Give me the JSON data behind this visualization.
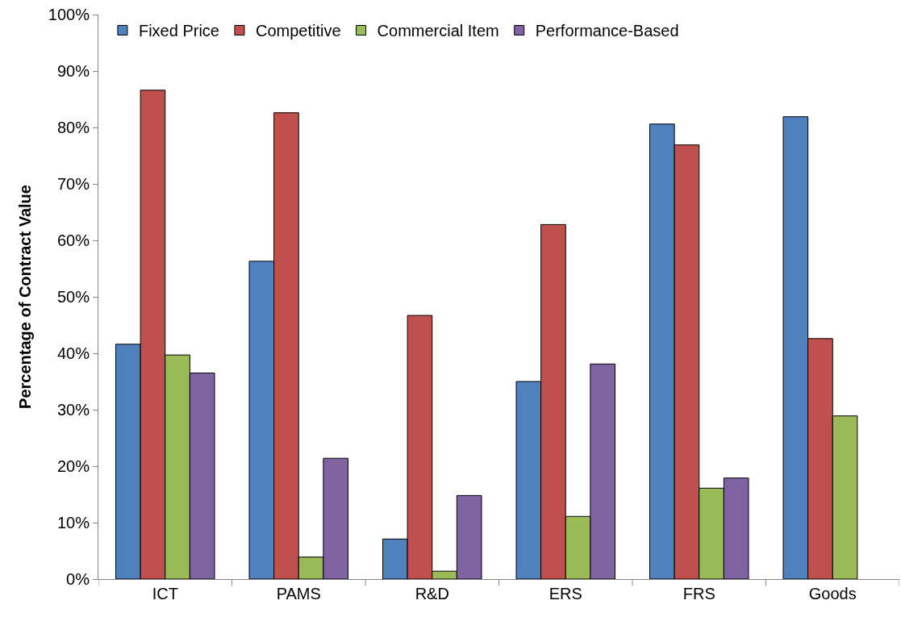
{
  "chart_data": {
    "type": "bar",
    "ylabel": "Percentage of Contract Value",
    "categories": [
      "ICT",
      "PAMS",
      "R&D",
      "ERS",
      "FRS",
      "Goods"
    ],
    "series": [
      {
        "name": "Fixed Price",
        "color": "#4f81bd",
        "values": [
          41.6,
          56.3,
          7.1,
          35.0,
          80.6,
          81.9
        ]
      },
      {
        "name": "Competitive",
        "color": "#c0504d",
        "values": [
          86.6,
          82.6,
          46.7,
          62.8,
          76.9,
          42.6
        ]
      },
      {
        "name": "Commercial Item",
        "color": "#9bbb59",
        "values": [
          39.7,
          3.9,
          1.4,
          11.1,
          16.1,
          28.9
        ]
      },
      {
        "name": "Performance-Based",
        "color": "#8064a2",
        "values": [
          36.5,
          21.4,
          14.8,
          38.1,
          17.9,
          null
        ]
      }
    ],
    "ylim": [
      0,
      100
    ],
    "yticks": [
      {
        "value": 0,
        "label": "0%"
      },
      {
        "value": 10,
        "label": "10%"
      },
      {
        "value": 20,
        "label": "20%"
      },
      {
        "value": 30,
        "label": "30%"
      },
      {
        "value": 40,
        "label": "40%"
      },
      {
        "value": 50,
        "label": "50%"
      },
      {
        "value": 60,
        "label": "60%"
      },
      {
        "value": 70,
        "label": "70%"
      },
      {
        "value": 80,
        "label": "80%"
      },
      {
        "value": 90,
        "label": "90%"
      },
      {
        "value": 100,
        "label": "100%"
      }
    ],
    "grid": false,
    "legend": "top left"
  }
}
